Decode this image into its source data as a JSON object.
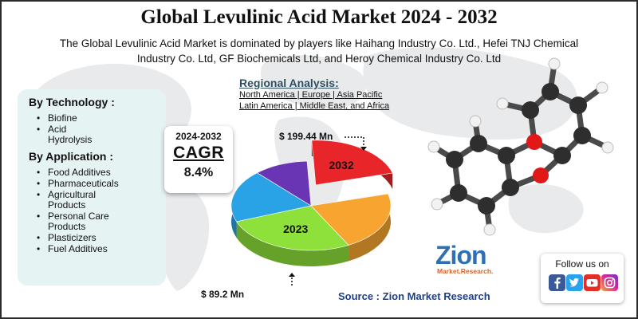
{
  "header": {
    "title": "Global Levulinic Acid Market 2024 - 2032",
    "subtitle_line1": "The Global Levulinic Acid Market is dominated by players like Haihang Industry Co. Ltd., Hefei TNJ Chemical",
    "subtitle_line2": "Industry Co. Ltd, GF Biochemicals Ltd, and Heroy Chemical Industry Co. Ltd"
  },
  "segments": {
    "technology": {
      "heading": "By Technology :",
      "items": [
        "Biofine",
        "Acid Hydrolysis"
      ]
    },
    "application": {
      "heading": "By Application :",
      "items": [
        "Food Additives",
        "Pharmaceuticals",
        "Agricultural Products",
        "Personal Care Products",
        "Plasticizers",
        "Fuel Additives"
      ]
    }
  },
  "cagr": {
    "years": "2024-2032",
    "label": "CAGR",
    "value": "8.4%"
  },
  "regional": {
    "title": "Regional Analysis:",
    "line1": "North America | Europe | Asia Pacific",
    "line2": "Latin America | Middle East, and Africa"
  },
  "callouts": {
    "top": "$ 199.44 Mn",
    "bottom": "$  89.2 Mn"
  },
  "chart_data": {
    "type": "pie",
    "slices": [
      {
        "label": "2032",
        "share": 0.215,
        "color": "#e8262a"
      },
      {
        "label": "",
        "share": 0.215,
        "color": "#f7a530"
      },
      {
        "label": "2023",
        "share": 0.27,
        "color": "#8ee03a"
      },
      {
        "label": "",
        "share": 0.19,
        "color": "#2aa2e6"
      },
      {
        "label": "",
        "share": 0.11,
        "color": "#6a35b4"
      }
    ],
    "annotations": [
      "$ 199.44 Mn",
      "$ 89.2 Mn"
    ]
  },
  "brand": {
    "logo_word": "Zion",
    "logo_sub": "Market.Research.",
    "source": "Source : Zion Market Research",
    "follow": "Follow us on",
    "social_icons": [
      "facebook-icon",
      "twitter-icon",
      "youtube-icon",
      "instagram-icon"
    ]
  }
}
